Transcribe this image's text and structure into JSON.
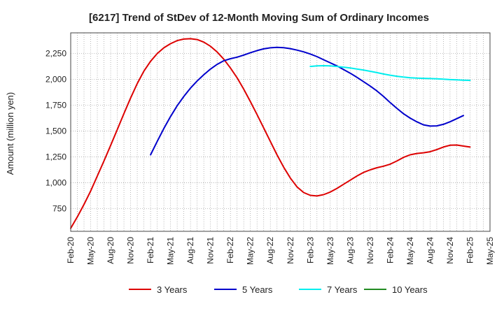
{
  "chart_data": {
    "type": "line",
    "title": "[6217]  Trend of StDev of 12-Month Moving Sum of Ordinary Incomes",
    "ylabel": "Amount (million yen)",
    "xlabel": "",
    "x_ticks": [
      "Feb-20",
      "May-20",
      "Aug-20",
      "Nov-20",
      "Feb-21",
      "May-21",
      "Aug-21",
      "Nov-21",
      "Feb-22",
      "May-22",
      "Aug-22",
      "Nov-22",
      "Feb-23",
      "May-23",
      "Aug-23",
      "Nov-23",
      "Feb-24",
      "May-24",
      "Aug-24",
      "Nov-24",
      "Feb-25",
      "May-25"
    ],
    "y_ticks": [
      750,
      1000,
      1250,
      1500,
      1750,
      2000,
      2250
    ],
    "y_tick_labels": [
      "750",
      "1,000",
      "1,250",
      "1,500",
      "1,750",
      "2,000",
      "2,250"
    ],
    "x_range": [
      "Feb-20",
      "May-25"
    ],
    "ylim": [
      530,
      2450
    ],
    "grid": true,
    "legend_position": "bottom",
    "series": [
      {
        "name": "3 Years",
        "color": "#dd0000",
        "points": [
          [
            "Feb-20",
            560
          ],
          [
            "Mar-20",
            670
          ],
          [
            "Apr-20",
            790
          ],
          [
            "May-20",
            920
          ],
          [
            "Jun-20",
            1065
          ],
          [
            "Jul-20",
            1210
          ],
          [
            "Aug-20",
            1360
          ],
          [
            "Sep-20",
            1515
          ],
          [
            "Oct-20",
            1670
          ],
          [
            "Nov-20",
            1820
          ],
          [
            "Dec-20",
            1960
          ],
          [
            "Jan-21",
            2080
          ],
          [
            "Feb-21",
            2175
          ],
          [
            "Mar-21",
            2250
          ],
          [
            "Apr-21",
            2305
          ],
          [
            "May-21",
            2345
          ],
          [
            "Jun-21",
            2375
          ],
          [
            "Jul-21",
            2390
          ],
          [
            "Aug-21",
            2393
          ],
          [
            "Sep-21",
            2385
          ],
          [
            "Oct-21",
            2360
          ],
          [
            "Nov-21",
            2320
          ],
          [
            "Dec-21",
            2265
          ],
          [
            "Jan-22",
            2195
          ],
          [
            "Feb-22",
            2110
          ],
          [
            "Mar-22",
            2015
          ],
          [
            "Apr-22",
            1905
          ],
          [
            "May-22",
            1785
          ],
          [
            "Jun-22",
            1660
          ],
          [
            "Jul-22",
            1530
          ],
          [
            "Aug-22",
            1400
          ],
          [
            "Sep-22",
            1270
          ],
          [
            "Oct-22",
            1150
          ],
          [
            "Nov-22",
            1045
          ],
          [
            "Dec-22",
            960
          ],
          [
            "Jan-23",
            905
          ],
          [
            "Feb-23",
            878
          ],
          [
            "Mar-23",
            872
          ],
          [
            "Apr-23",
            885
          ],
          [
            "May-23",
            910
          ],
          [
            "Jun-23",
            945
          ],
          [
            "Jul-23",
            985
          ],
          [
            "Aug-23",
            1025
          ],
          [
            "Sep-23",
            1065
          ],
          [
            "Oct-23",
            1100
          ],
          [
            "Nov-23",
            1125
          ],
          [
            "Dec-23",
            1145
          ],
          [
            "Jan-24",
            1160
          ],
          [
            "Feb-24",
            1180
          ],
          [
            "Mar-24",
            1210
          ],
          [
            "Apr-24",
            1245
          ],
          [
            "May-24",
            1270
          ],
          [
            "Jun-24",
            1283
          ],
          [
            "Jul-24",
            1290
          ],
          [
            "Aug-24",
            1300
          ],
          [
            "Sep-24",
            1320
          ],
          [
            "Oct-24",
            1345
          ],
          [
            "Nov-24",
            1363
          ],
          [
            "Dec-24",
            1365
          ],
          [
            "Jan-25",
            1355
          ],
          [
            "Feb-25",
            1345
          ]
        ]
      },
      {
        "name": "5 Years",
        "color": "#0000cc",
        "points": [
          [
            "Feb-21",
            1270
          ],
          [
            "Mar-21",
            1400
          ],
          [
            "Apr-21",
            1525
          ],
          [
            "May-21",
            1640
          ],
          [
            "Jun-21",
            1745
          ],
          [
            "Jul-21",
            1835
          ],
          [
            "Aug-21",
            1915
          ],
          [
            "Sep-21",
            1985
          ],
          [
            "Oct-21",
            2045
          ],
          [
            "Nov-21",
            2100
          ],
          [
            "Dec-21",
            2145
          ],
          [
            "Jan-22",
            2180
          ],
          [
            "Feb-22",
            2200
          ],
          [
            "Mar-22",
            2215
          ],
          [
            "Apr-22",
            2235
          ],
          [
            "May-22",
            2258
          ],
          [
            "Jun-22",
            2278
          ],
          [
            "Jul-22",
            2295
          ],
          [
            "Aug-22",
            2305
          ],
          [
            "Sep-22",
            2310
          ],
          [
            "Oct-22",
            2307
          ],
          [
            "Nov-22",
            2297
          ],
          [
            "Dec-22",
            2283
          ],
          [
            "Jan-23",
            2266
          ],
          [
            "Feb-23",
            2245
          ],
          [
            "Mar-23",
            2220
          ],
          [
            "Apr-23",
            2190
          ],
          [
            "May-23",
            2160
          ],
          [
            "Jun-23",
            2130
          ],
          [
            "Jul-23",
            2095
          ],
          [
            "Aug-23",
            2060
          ],
          [
            "Sep-23",
            2020
          ],
          [
            "Oct-23",
            1978
          ],
          [
            "Nov-23",
            1935
          ],
          [
            "Dec-23",
            1888
          ],
          [
            "Jan-24",
            1835
          ],
          [
            "Feb-24",
            1775
          ],
          [
            "Mar-24",
            1720
          ],
          [
            "Apr-24",
            1668
          ],
          [
            "May-24",
            1625
          ],
          [
            "Jun-24",
            1590
          ],
          [
            "Jul-24",
            1560
          ],
          [
            "Aug-24",
            1548
          ],
          [
            "Sep-24",
            1550
          ],
          [
            "Oct-24",
            1565
          ],
          [
            "Nov-24",
            1590
          ],
          [
            "Dec-24",
            1620
          ],
          [
            "Jan-25",
            1650
          ]
        ]
      },
      {
        "name": "7 Years",
        "color": "#00eeee",
        "points": [
          [
            "Feb-23",
            2125
          ],
          [
            "Mar-23",
            2130
          ],
          [
            "Apr-23",
            2132
          ],
          [
            "May-23",
            2130
          ],
          [
            "Jun-23",
            2125
          ],
          [
            "Jul-23",
            2118
          ],
          [
            "Aug-23",
            2110
          ],
          [
            "Sep-23",
            2100
          ],
          [
            "Oct-23",
            2090
          ],
          [
            "Nov-23",
            2078
          ],
          [
            "Dec-23",
            2065
          ],
          [
            "Jan-24",
            2052
          ],
          [
            "Feb-24",
            2040
          ],
          [
            "Mar-24",
            2030
          ],
          [
            "Apr-24",
            2022
          ],
          [
            "May-24",
            2016
          ],
          [
            "Jun-24",
            2012
          ],
          [
            "Jul-24",
            2010
          ],
          [
            "Aug-24",
            2008
          ],
          [
            "Sep-24",
            2005
          ],
          [
            "Oct-24",
            2002
          ],
          [
            "Nov-24",
            1998
          ],
          [
            "Dec-24",
            1995
          ],
          [
            "Jan-25",
            1992
          ],
          [
            "Feb-25",
            1990
          ]
        ]
      },
      {
        "name": "10 Years",
        "color": "#228b22",
        "points": []
      }
    ]
  }
}
